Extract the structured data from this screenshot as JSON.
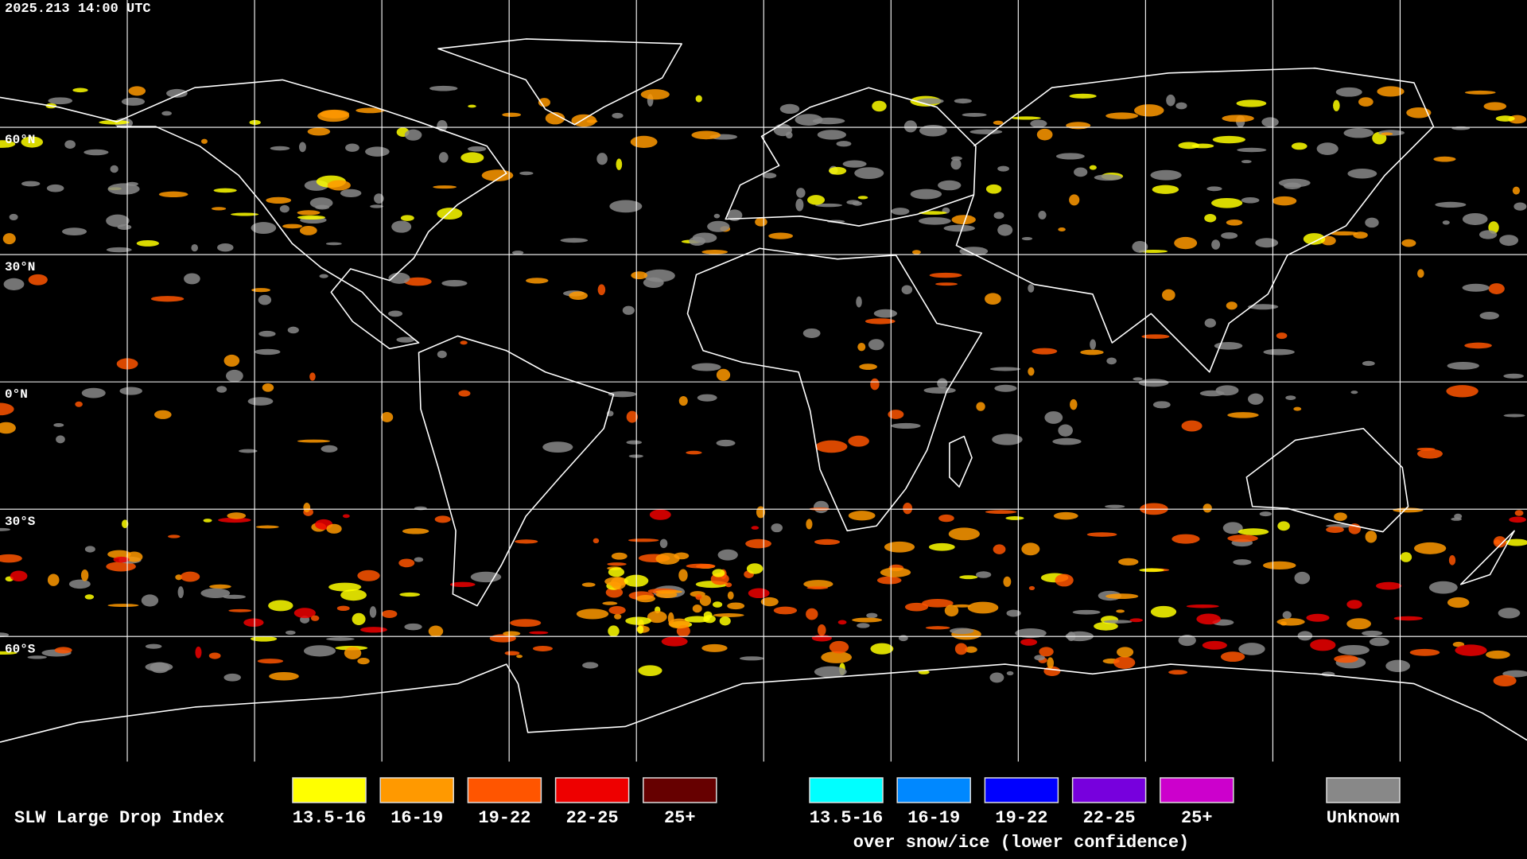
{
  "timestamp": "2025.213 14:00 UTC",
  "lat_labels": [
    "60°N",
    "30°N",
    "0°N",
    "30°S",
    "60°S"
  ],
  "legend": {
    "title": "SLW Large Drop Index",
    "items": [
      {
        "label": "13.5-16",
        "color": "#ffff00"
      },
      {
        "label": "16-19",
        "color": "#ff9900"
      },
      {
        "label": "19-22",
        "color": "#ff5500"
      },
      {
        "label": "22-25",
        "color": "#ee0000"
      },
      {
        "label": "25+",
        "color": "#660000"
      }
    ],
    "snow_items": [
      {
        "label": "13.5-16",
        "color": "#00ffff"
      },
      {
        "label": "16-19",
        "color": "#0088ff"
      },
      {
        "label": "19-22",
        "color": "#0000ff"
      },
      {
        "label": "22-25",
        "color": "#7700dd"
      },
      {
        "label": "25+",
        "color": "#cc00cc"
      }
    ],
    "snow_note": "over snow/ice (lower confidence)",
    "unknown": {
      "label": "Unknown",
      "color": "#888888"
    }
  }
}
